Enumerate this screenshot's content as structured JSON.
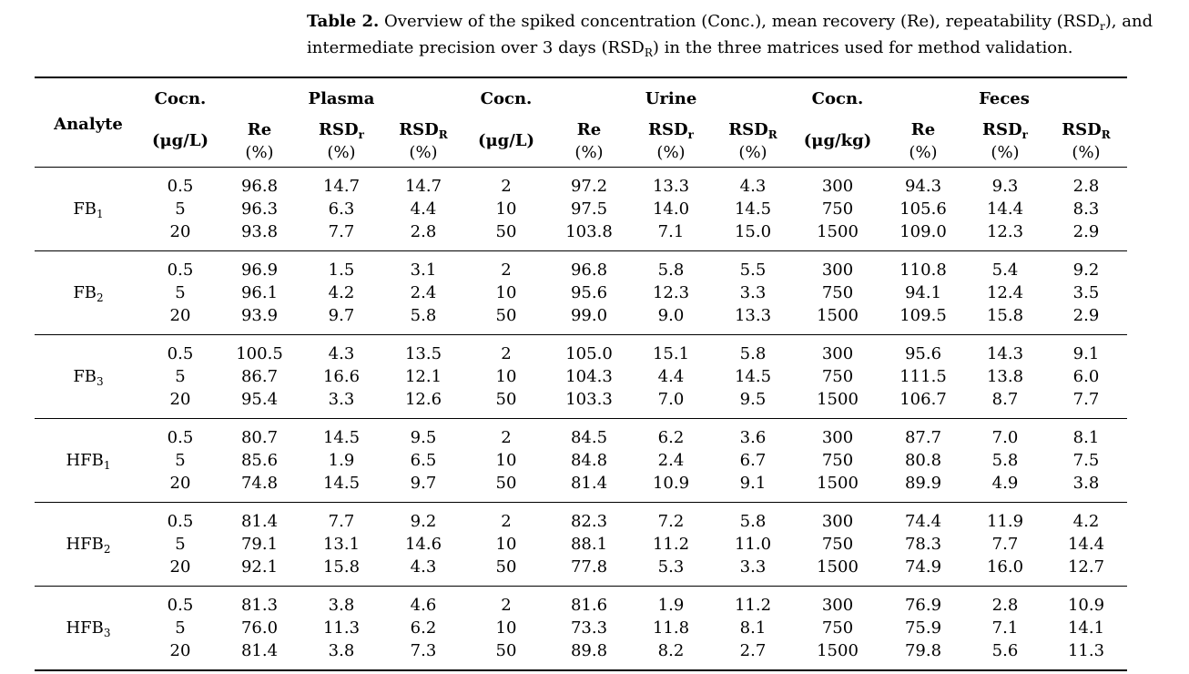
{
  "caption": {
    "label": "Table 2.",
    "text_a": "Overview of the spiked concentration (Conc.), mean recovery (Re), repeatability (RSD",
    "sub_r": "r",
    "text_b": "), and intermediate precision over 3 days (RSD",
    "sub_R": "R",
    "text_c": ") in the three matrices used for method validation."
  },
  "header": {
    "analyte": "Analyte",
    "cocn": "Cocn.",
    "plasma": "Plasma",
    "urine": "Urine",
    "feces": "Feces",
    "unit_plasma": "(μg/L)",
    "unit_urine": "(μg/L)",
    "unit_feces": "(μg/kg)",
    "re": "Re",
    "rsd": "RSD",
    "r_small": "r",
    "r_big": "R",
    "pct": "(%)"
  },
  "rows": [
    {
      "analyte": "FB",
      "sub": "1",
      "plasma_conc": [
        "0.5",
        "5",
        "20"
      ],
      "plasma_re": [
        "96.8",
        "96.3",
        "93.8"
      ],
      "plasma_rsdr": [
        "14.7",
        "6.3",
        "7.7"
      ],
      "plasma_rsdR": [
        "14.7",
        "4.4",
        "2.8"
      ],
      "urine_conc": [
        "2",
        "10",
        "50"
      ],
      "urine_re": [
        "97.2",
        "97.5",
        "103.8"
      ],
      "urine_rsdr": [
        "13.3",
        "14.0",
        "7.1"
      ],
      "urine_rsdR": [
        "4.3",
        "14.5",
        "15.0"
      ],
      "feces_conc": [
        "300",
        "750",
        "1500"
      ],
      "feces_re": [
        "94.3",
        "105.6",
        "109.0"
      ],
      "feces_rsdr": [
        "9.3",
        "14.4",
        "12.3"
      ],
      "feces_rsdR": [
        "2.8",
        "8.3",
        "2.9"
      ]
    },
    {
      "analyte": "FB",
      "sub": "2",
      "plasma_conc": [
        "0.5",
        "5",
        "20"
      ],
      "plasma_re": [
        "96.9",
        "96.1",
        "93.9"
      ],
      "plasma_rsdr": [
        "1.5",
        "4.2",
        "9.7"
      ],
      "plasma_rsdR": [
        "3.1",
        "2.4",
        "5.8"
      ],
      "urine_conc": [
        "2",
        "10",
        "50"
      ],
      "urine_re": [
        "96.8",
        "95.6",
        "99.0"
      ],
      "urine_rsdr": [
        "5.8",
        "12.3",
        "9.0"
      ],
      "urine_rsdR": [
        "5.5",
        "3.3",
        "13.3"
      ],
      "feces_conc": [
        "300",
        "750",
        "1500"
      ],
      "feces_re": [
        "110.8",
        "94.1",
        "109.5"
      ],
      "feces_rsdr": [
        "5.4",
        "12.4",
        "15.8"
      ],
      "feces_rsdR": [
        "9.2",
        "3.5",
        "2.9"
      ]
    },
    {
      "analyte": "FB",
      "sub": "3",
      "plasma_conc": [
        "0.5",
        "5",
        "20"
      ],
      "plasma_re": [
        "100.5",
        "86.7",
        "95.4"
      ],
      "plasma_rsdr": [
        "4.3",
        "16.6",
        "3.3"
      ],
      "plasma_rsdR": [
        "13.5",
        "12.1",
        "12.6"
      ],
      "urine_conc": [
        "2",
        "10",
        "50"
      ],
      "urine_re": [
        "105.0",
        "104.3",
        "103.3"
      ],
      "urine_rsdr": [
        "15.1",
        "4.4",
        "7.0"
      ],
      "urine_rsdR": [
        "5.8",
        "14.5",
        "9.5"
      ],
      "feces_conc": [
        "300",
        "750",
        "1500"
      ],
      "feces_re": [
        "95.6",
        "111.5",
        "106.7"
      ],
      "feces_rsdr": [
        "14.3",
        "13.8",
        "8.7"
      ],
      "feces_rsdR": [
        "9.1",
        "6.0",
        "7.7"
      ]
    },
    {
      "analyte": "HFB",
      "sub": "1",
      "plasma_conc": [
        "0.5",
        "5",
        "20"
      ],
      "plasma_re": [
        "80.7",
        "85.6",
        "74.8"
      ],
      "plasma_rsdr": [
        "14.5",
        "1.9",
        "14.5"
      ],
      "plasma_rsdR": [
        "9.5",
        "6.5",
        "9.7"
      ],
      "urine_conc": [
        "2",
        "10",
        "50"
      ],
      "urine_re": [
        "84.5",
        "84.8",
        "81.4"
      ],
      "urine_rsdr": [
        "6.2",
        "2.4",
        "10.9"
      ],
      "urine_rsdR": [
        "3.6",
        "6.7",
        "9.1"
      ],
      "feces_conc": [
        "300",
        "750",
        "1500"
      ],
      "feces_re": [
        "87.7",
        "80.8",
        "89.9"
      ],
      "feces_rsdr": [
        "7.0",
        "5.8",
        "4.9"
      ],
      "feces_rsdR": [
        "8.1",
        "7.5",
        "3.8"
      ]
    },
    {
      "analyte": "HFB",
      "sub": "2",
      "plasma_conc": [
        "0.5",
        "5",
        "20"
      ],
      "plasma_re": [
        "81.4",
        "79.1",
        "92.1"
      ],
      "plasma_rsdr": [
        "7.7",
        "13.1",
        "15.8"
      ],
      "plasma_rsdR": [
        "9.2",
        "14.6",
        "4.3"
      ],
      "urine_conc": [
        "2",
        "10",
        "50"
      ],
      "urine_re": [
        "82.3",
        "88.1",
        "77.8"
      ],
      "urine_rsdr": [
        "7.2",
        "11.2",
        "5.3"
      ],
      "urine_rsdR": [
        "5.8",
        "11.0",
        "3.3"
      ],
      "feces_conc": [
        "300",
        "750",
        "1500"
      ],
      "feces_re": [
        "74.4",
        "78.3",
        "74.9"
      ],
      "feces_rsdr": [
        "11.9",
        "7.7",
        "16.0"
      ],
      "feces_rsdR": [
        "4.2",
        "14.4",
        "12.7"
      ]
    },
    {
      "analyte": "HFB",
      "sub": "3",
      "plasma_conc": [
        "0.5",
        "5",
        "20"
      ],
      "plasma_re": [
        "81.3",
        "76.0",
        "81.4"
      ],
      "plasma_rsdr": [
        "3.8",
        "11.3",
        "3.8"
      ],
      "plasma_rsdR": [
        "4.6",
        "6.2",
        "7.3"
      ],
      "urine_conc": [
        "2",
        "10",
        "50"
      ],
      "urine_re": [
        "81.6",
        "73.3",
        "89.8"
      ],
      "urine_rsdr": [
        "1.9",
        "11.8",
        "8.2"
      ],
      "urine_rsdR": [
        "11.2",
        "8.1",
        "2.7"
      ],
      "feces_conc": [
        "300",
        "750",
        "1500"
      ],
      "feces_re": [
        "76.9",
        "75.9",
        "79.8"
      ],
      "feces_rsdr": [
        "2.8",
        "7.1",
        "5.6"
      ],
      "feces_rsdR": [
        "10.9",
        "14.1",
        "11.3"
      ]
    }
  ]
}
